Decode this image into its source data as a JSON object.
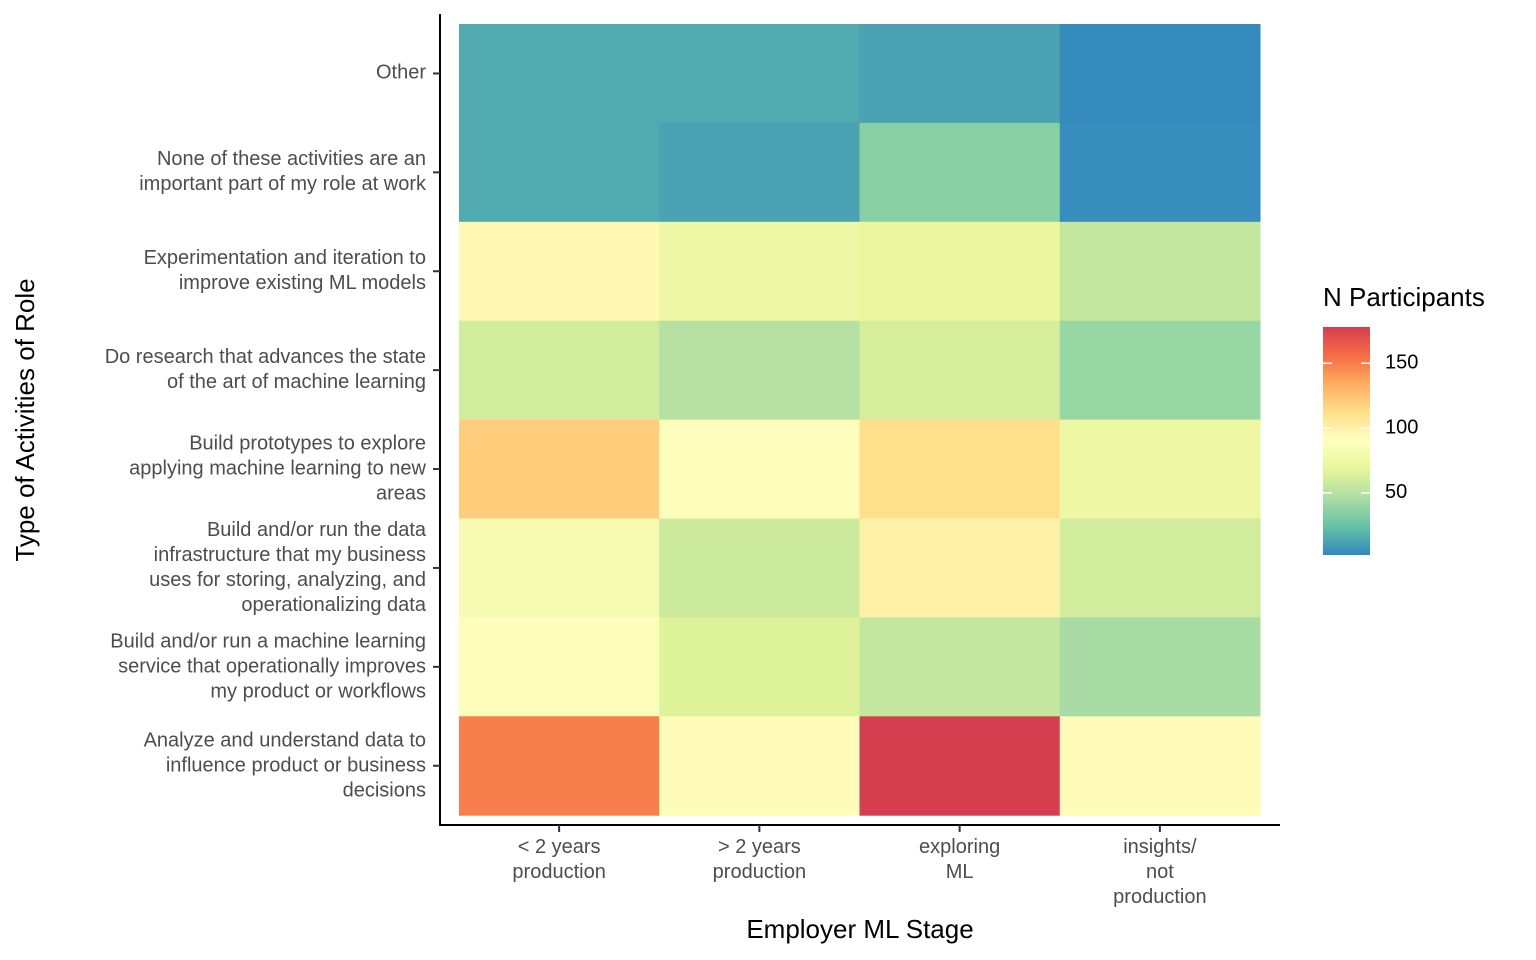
{
  "chart_data": {
    "type": "heatmap",
    "x_label": "Employer ML Stage",
    "y_label": "Type of Activities of Role",
    "x_categories": [
      "< 2 years\nproduction",
      "> 2 years\nproduction",
      "exploring\nML",
      "insights/\nnot\nproduction"
    ],
    "y_categories": [
      "Other",
      "None of these activities are an\nimportant part of my role at work",
      "Experimentation and iteration to\nimprove existing ML models",
      "Do research that advances the state\nof the art of machine learning",
      "Build prototypes to explore\napplying machine learning to new\nareas",
      "Build and/or run the data\ninfrastructure that my business\nuses for storing, analyzing, and\noperationalizing data",
      "Build and/or run a machine learning\nservice that operationally improves\nmy product or workflows",
      "Analyze and understand data to\ninfluence product or business\ndecisions"
    ],
    "values": [
      [
        15,
        15,
        12,
        3
      ],
      [
        15,
        12,
        35,
        4
      ],
      [
        95,
        75,
        72,
        55
      ],
      [
        60,
        50,
        62,
        40
      ],
      [
        120,
        88,
        112,
        75
      ],
      [
        82,
        58,
        100,
        60
      ],
      [
        88,
        65,
        55,
        45
      ],
      [
        150,
        92,
        178,
        92
      ]
    ],
    "legend_title": "N Participants",
    "color_lim": [
      2,
      178
    ],
    "color_ticks": [
      50,
      100,
      150
    ],
    "colorscale": [
      "#3288bd",
      "#66c2a5",
      "#abdda4",
      "#e6f598",
      "#ffffbf",
      "#fee08b",
      "#fdae61",
      "#f46d43",
      "#d53e4f"
    ]
  }
}
